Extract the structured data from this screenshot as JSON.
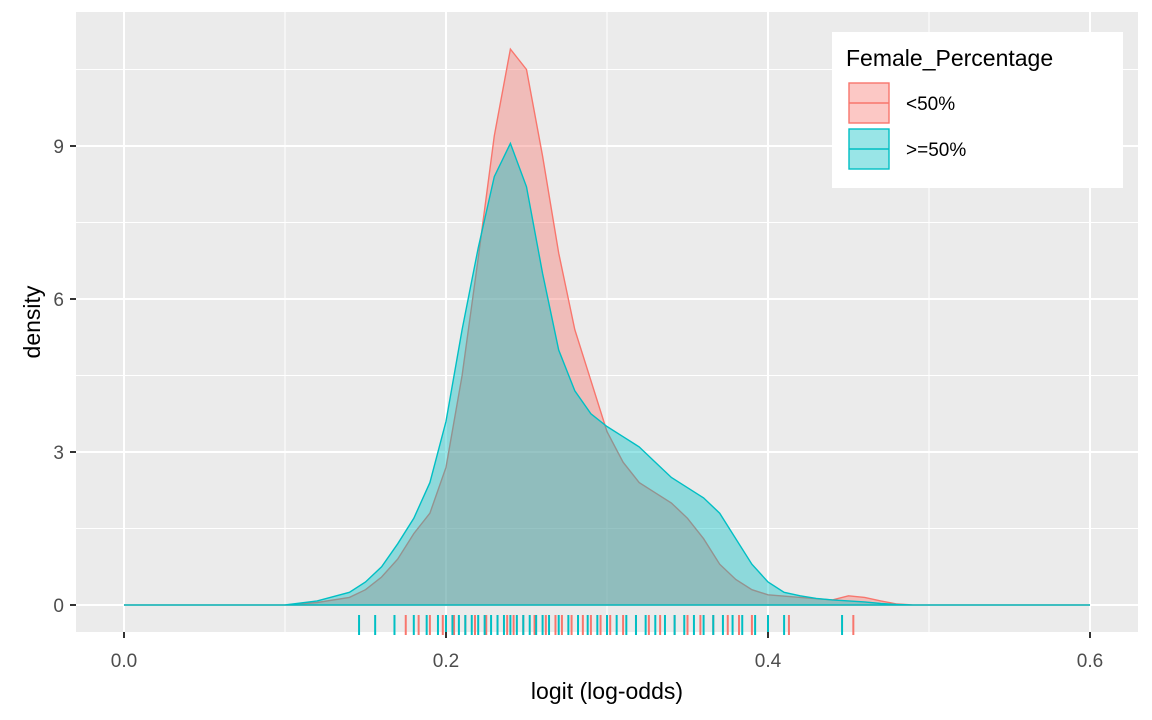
{
  "chart_data": {
    "type": "area",
    "title": "",
    "xlabel": "logit (log-odds)",
    "ylabel": "density",
    "xlim": [
      0.0,
      0.6
    ],
    "ylim": [
      0,
      11.5
    ],
    "x_ticks": [
      "0.0",
      "0.2",
      "0.4",
      "0.6"
    ],
    "y_ticks": [
      "0",
      "3",
      "6",
      "9"
    ],
    "grid": true,
    "legend": {
      "title": "Female_Percentage",
      "placement": "top-right"
    },
    "series": [
      {
        "name": "<50%",
        "color": "#F8766D",
        "points": [
          [
            0.0,
            0
          ],
          [
            0.1,
            0
          ],
          [
            0.12,
            0.05
          ],
          [
            0.14,
            0.15
          ],
          [
            0.15,
            0.3
          ],
          [
            0.16,
            0.55
          ],
          [
            0.17,
            0.9
          ],
          [
            0.18,
            1.4
          ],
          [
            0.19,
            1.8
          ],
          [
            0.2,
            2.7
          ],
          [
            0.21,
            4.5
          ],
          [
            0.22,
            6.8
          ],
          [
            0.23,
            9.2
          ],
          [
            0.24,
            10.9
          ],
          [
            0.25,
            10.5
          ],
          [
            0.26,
            8.8
          ],
          [
            0.27,
            6.9
          ],
          [
            0.28,
            5.4
          ],
          [
            0.29,
            4.4
          ],
          [
            0.3,
            3.4
          ],
          [
            0.31,
            2.8
          ],
          [
            0.32,
            2.4
          ],
          [
            0.33,
            2.2
          ],
          [
            0.34,
            2.0
          ],
          [
            0.35,
            1.7
          ],
          [
            0.36,
            1.3
          ],
          [
            0.37,
            0.8
          ],
          [
            0.38,
            0.5
          ],
          [
            0.39,
            0.3
          ],
          [
            0.4,
            0.2
          ],
          [
            0.42,
            0.15
          ],
          [
            0.44,
            0.1
          ],
          [
            0.45,
            0.18
          ],
          [
            0.46,
            0.15
          ],
          [
            0.47,
            0.08
          ],
          [
            0.48,
            0.02
          ],
          [
            0.49,
            0
          ],
          [
            0.6,
            0
          ]
        ],
        "rug": [
          0.175,
          0.183,
          0.19,
          0.198,
          0.205,
          0.212,
          0.218,
          0.225,
          0.232,
          0.238,
          0.242,
          0.248,
          0.255,
          0.262,
          0.268,
          0.272,
          0.278,
          0.285,
          0.29,
          0.296,
          0.302,
          0.31,
          0.318,
          0.326,
          0.333,
          0.342,
          0.35,
          0.358,
          0.366,
          0.375,
          0.382,
          0.39,
          0.413,
          0.453
        ]
      },
      {
        "name": ">=50%",
        "color": "#00BFC4",
        "points": [
          [
            0.0,
            0
          ],
          [
            0.1,
            0
          ],
          [
            0.12,
            0.08
          ],
          [
            0.14,
            0.25
          ],
          [
            0.15,
            0.45
          ],
          [
            0.16,
            0.75
          ],
          [
            0.17,
            1.2
          ],
          [
            0.18,
            1.7
          ],
          [
            0.19,
            2.4
          ],
          [
            0.2,
            3.6
          ],
          [
            0.21,
            5.4
          ],
          [
            0.22,
            7.0
          ],
          [
            0.23,
            8.4
          ],
          [
            0.24,
            9.05
          ],
          [
            0.25,
            8.2
          ],
          [
            0.26,
            6.5
          ],
          [
            0.27,
            5.0
          ],
          [
            0.28,
            4.2
          ],
          [
            0.29,
            3.75
          ],
          [
            0.3,
            3.5
          ],
          [
            0.31,
            3.3
          ],
          [
            0.32,
            3.1
          ],
          [
            0.33,
            2.8
          ],
          [
            0.34,
            2.5
          ],
          [
            0.35,
            2.3
          ],
          [
            0.36,
            2.1
          ],
          [
            0.37,
            1.8
          ],
          [
            0.38,
            1.3
          ],
          [
            0.39,
            0.8
          ],
          [
            0.4,
            0.45
          ],
          [
            0.41,
            0.25
          ],
          [
            0.42,
            0.18
          ],
          [
            0.43,
            0.13
          ],
          [
            0.44,
            0.1
          ],
          [
            0.45,
            0.08
          ],
          [
            0.46,
            0.06
          ],
          [
            0.47,
            0.03
          ],
          [
            0.48,
            0.01
          ],
          [
            0.49,
            0
          ],
          [
            0.6,
            0
          ]
        ],
        "rug": [
          0.146,
          0.156,
          0.168,
          0.18,
          0.188,
          0.195,
          0.2,
          0.204,
          0.208,
          0.212,
          0.216,
          0.22,
          0.224,
          0.228,
          0.232,
          0.236,
          0.24,
          0.244,
          0.248,
          0.252,
          0.256,
          0.26,
          0.264,
          0.27,
          0.276,
          0.282,
          0.288,
          0.294,
          0.3,
          0.306,
          0.312,
          0.318,
          0.324,
          0.33,
          0.336,
          0.342,
          0.348,
          0.354,
          0.36,
          0.366,
          0.372,
          0.378,
          0.384,
          0.392,
          0.4,
          0.41,
          0.446
        ]
      }
    ]
  }
}
